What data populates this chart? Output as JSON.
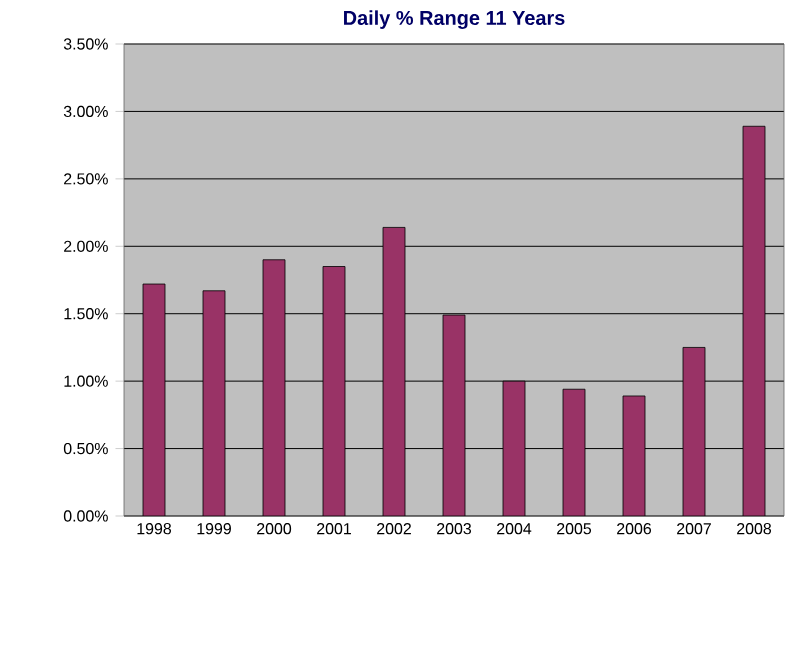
{
  "chart_data": {
    "type": "bar",
    "title": "Daily % Range 11 Years",
    "categories": [
      "1998",
      "1999",
      "2000",
      "2001",
      "2002",
      "2003",
      "2004",
      "2005",
      "2006",
      "2007",
      "2008"
    ],
    "values": [
      1.72,
      1.67,
      1.9,
      1.85,
      2.14,
      1.49,
      1.0,
      0.94,
      0.89,
      1.25,
      2.89
    ],
    "color": "#993366",
    "ylim": [
      0,
      3.5
    ],
    "yticks": [
      {
        "value": 0,
        "label": "0.00%"
      },
      {
        "value": 0.5,
        "label": "0.50%"
      },
      {
        "value": 1,
        "label": "1.00%"
      },
      {
        "value": 1.5,
        "label": "1.50%"
      },
      {
        "value": 2,
        "label": "2.00%"
      },
      {
        "value": 2.5,
        "label": "2.50%"
      },
      {
        "value": 3,
        "label": "3.00%"
      },
      {
        "value": 3.5,
        "label": "3.50%"
      }
    ],
    "grid": "y"
  }
}
